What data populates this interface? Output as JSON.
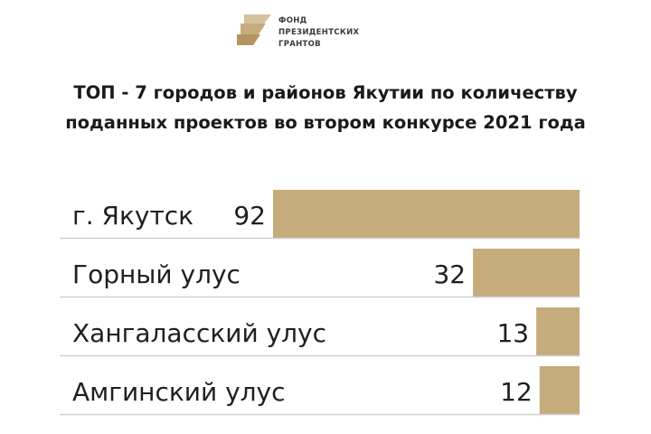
{
  "logo": {
    "lines": [
      "ФОНД",
      "ПРЕЗИДЕНТСКИХ",
      "ГРАНТОВ"
    ]
  },
  "title": {
    "line1": "ТОП - 7 городов и районов Якутии по количеству",
    "line2": "поданных проектов во втором конкурсе 2021 года"
  },
  "colors": {
    "bar": "#c6ab7c",
    "divider": "#cfcfcf",
    "text": "#1f1f1f"
  },
  "chart_data": {
    "type": "bar",
    "orientation": "horizontal",
    "categories": [
      "г. Якутск",
      "Горный улус",
      "Хангаласский улус",
      "Амгинский улус"
    ],
    "values": [
      92,
      32,
      13,
      12
    ],
    "xlabel": "",
    "ylabel": "",
    "grid": false,
    "legend": "none"
  }
}
